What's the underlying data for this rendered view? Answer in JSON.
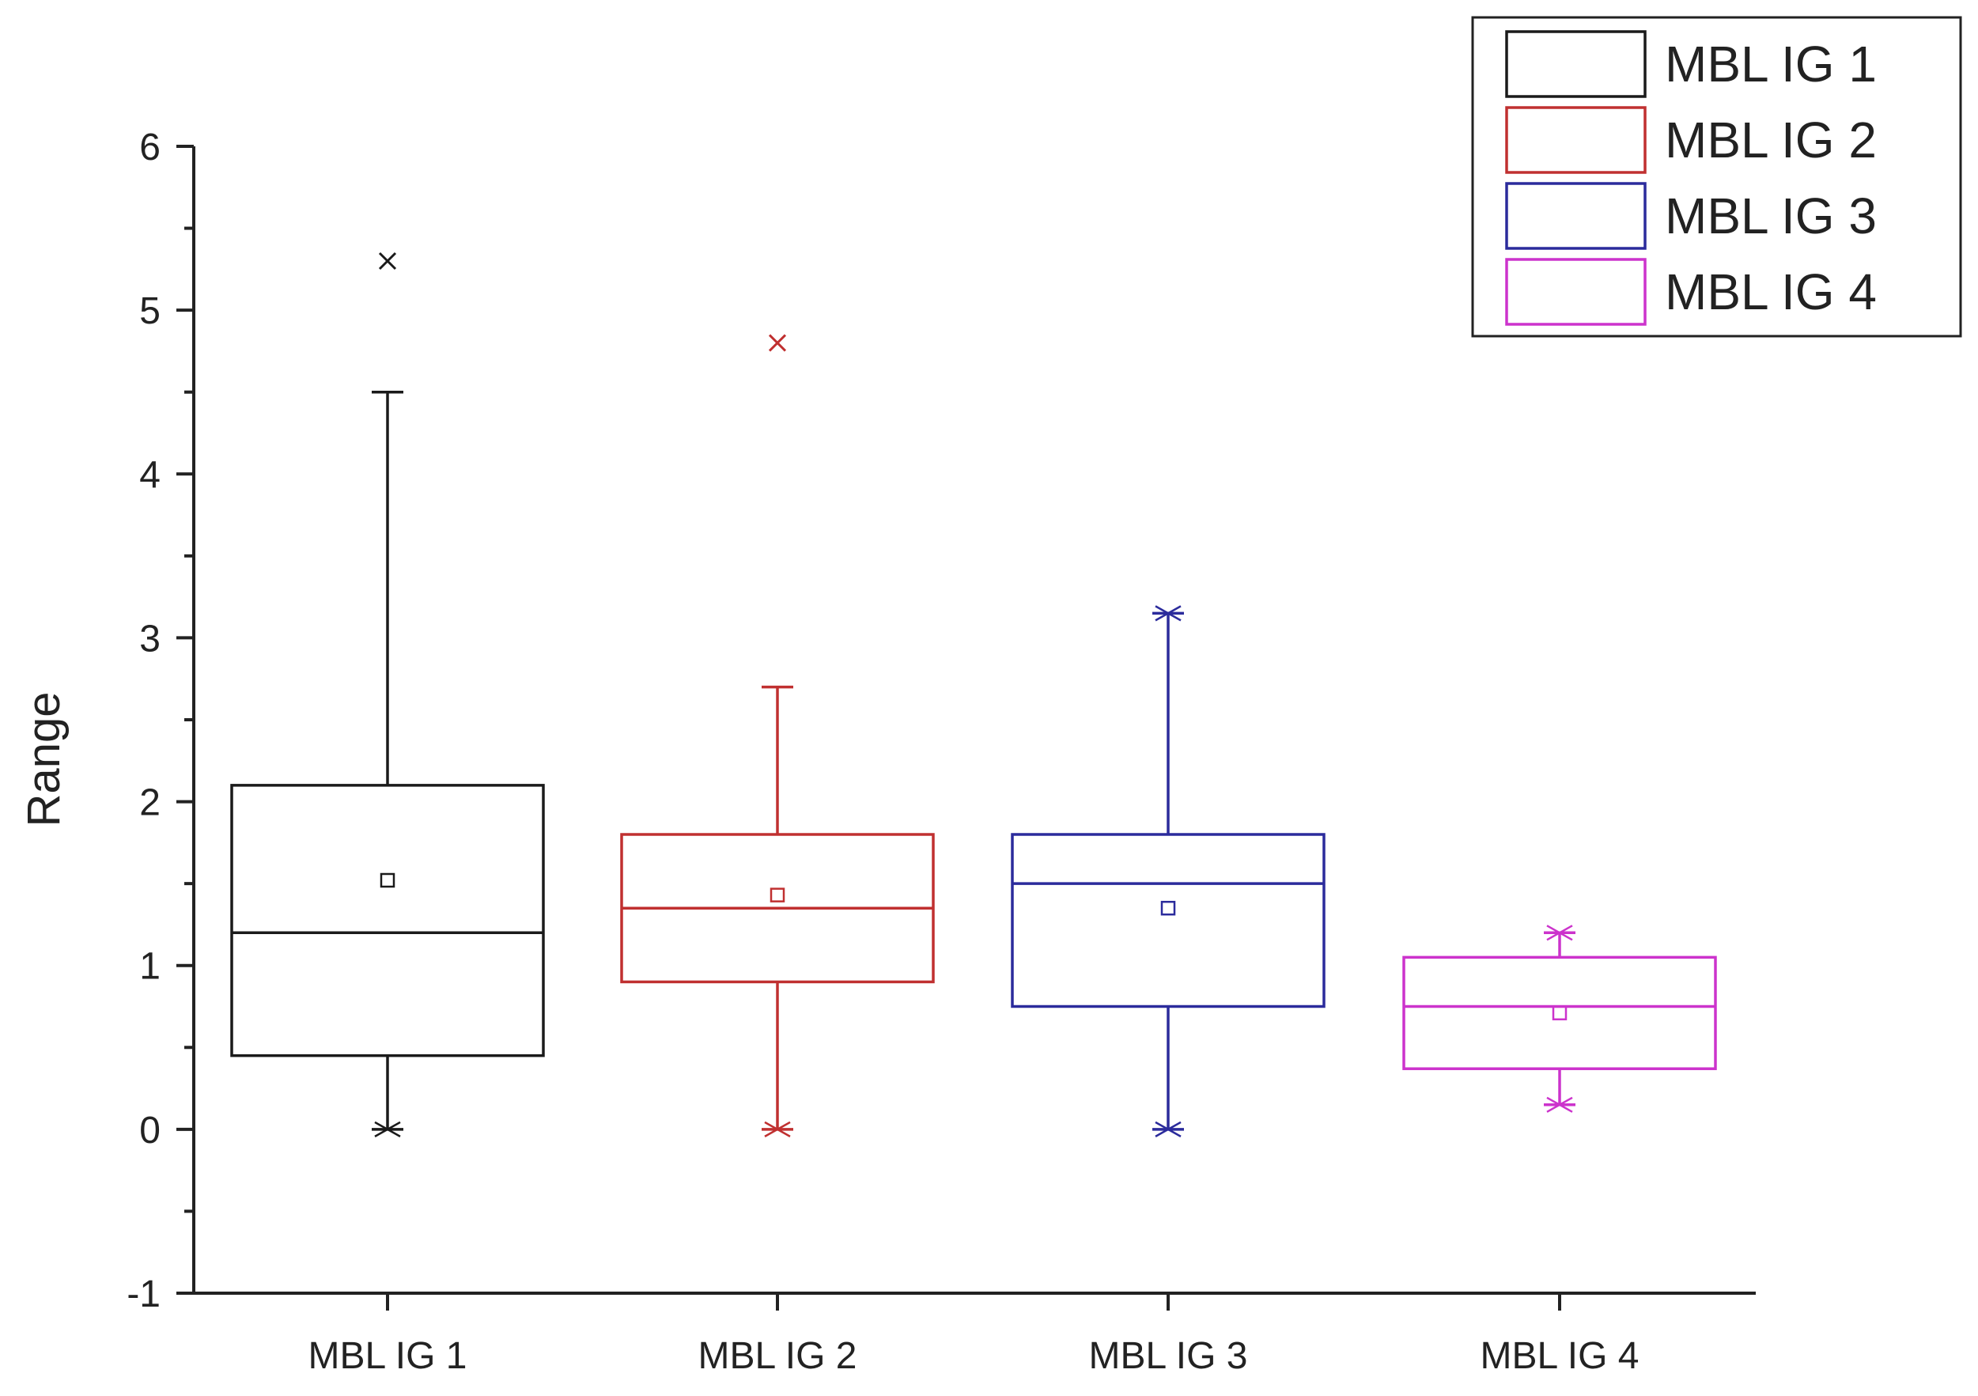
{
  "chart_data": {
    "type": "box",
    "title": "",
    "xlabel": "",
    "ylabel": "Range",
    "ylim": [
      -1,
      6
    ],
    "yticks": [
      "-1",
      "0",
      "1",
      "2",
      "3",
      "4",
      "5",
      "6"
    ],
    "categories": [
      "MBL IG 1",
      "MBL IG 2",
      "MBL IG 3",
      "MBL IG 4"
    ],
    "legend": {
      "position": "top-right",
      "entries": [
        "MBL IG 1",
        "MBL IG 2",
        "MBL IG 3",
        "MBL IG 4"
      ]
    },
    "series": [
      {
        "name": "MBL IG 1",
        "color": "#1a1a1a",
        "whisker_low": 0.0,
        "q1": 0.45,
        "median": 1.2,
        "q3": 2.1,
        "whisker_high": 4.5,
        "mean": 1.52,
        "outliers": [
          5.3
        ],
        "min_marker": 0.0,
        "max_marker": null
      },
      {
        "name": "MBL IG 2",
        "color": "#c03030",
        "whisker_low": 0.0,
        "q1": 0.9,
        "median": 1.35,
        "q3": 1.8,
        "whisker_high": 2.7,
        "mean": 1.43,
        "outliers": [
          4.8
        ],
        "min_marker": 0.0,
        "max_marker": null
      },
      {
        "name": "MBL IG 3",
        "color": "#2b2b9c",
        "whisker_low": 0.0,
        "q1": 0.75,
        "median": 1.5,
        "q3": 1.8,
        "whisker_high": 3.15,
        "mean": 1.35,
        "outliers": [],
        "min_marker": 0.0,
        "max_marker": 3.15
      },
      {
        "name": "MBL IG 4",
        "color": "#cc33cc",
        "whisker_low": 0.15,
        "q1": 0.37,
        "median": 0.75,
        "q3": 1.05,
        "whisker_high": 1.2,
        "mean": 0.71,
        "outliers": [],
        "min_marker": 0.15,
        "max_marker": 1.2
      }
    ]
  }
}
